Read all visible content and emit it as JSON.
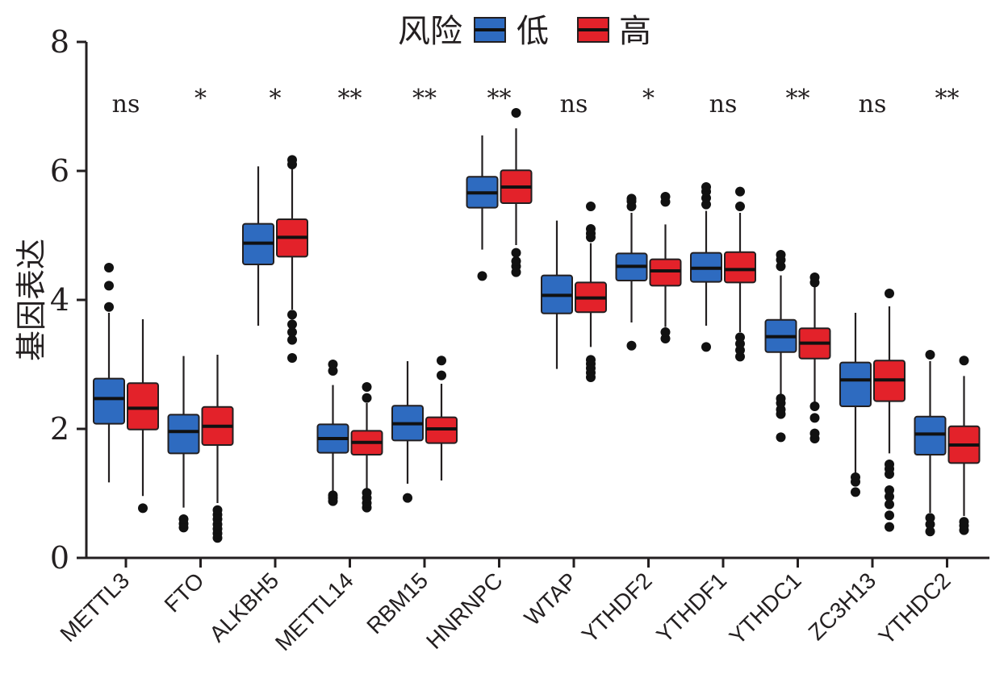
{
  "chart_data": {
    "type": "boxplot",
    "title": "",
    "xlabel": "",
    "ylabel": "基因表达",
    "ylim": [
      0,
      8
    ],
    "yticks": [
      0,
      2,
      4,
      6,
      8
    ],
    "legend": {
      "title": "风险",
      "position": "top-center",
      "entries": [
        {
          "label": "低",
          "color": "#2e6bc0"
        },
        {
          "label": "高",
          "color": "#e3222a"
        }
      ]
    },
    "categories": [
      "METTL3",
      "FTO",
      "ALKBH5",
      "METTL14",
      "RBM15",
      "HNRNPC",
      "WTAP",
      "YTHDF2",
      "YTHDF1",
      "YTHDC1",
      "ZC3H13",
      "YTHDC2"
    ],
    "significance": [
      "ns",
      "*",
      "*",
      "**",
      "**",
      "**",
      "ns",
      "*",
      "ns",
      "**",
      "ns",
      "**"
    ],
    "series": [
      {
        "name": "低",
        "color": "#2e6bc0",
        "boxes": [
          {
            "whisker_low": 1.17,
            "q1": 2.08,
            "median": 2.47,
            "q3": 2.78,
            "whisker_high": 3.8,
            "outliers": [
              3.89,
              4.22,
              4.5
            ]
          },
          {
            "whisker_low": 0.78,
            "q1": 1.62,
            "median": 1.96,
            "q3": 2.22,
            "whisker_high": 3.13,
            "outliers": [
              0.47,
              0.53,
              0.6
            ]
          },
          {
            "whisker_low": 3.6,
            "q1": 4.55,
            "median": 4.88,
            "q3": 5.18,
            "whisker_high": 6.07,
            "outliers": []
          },
          {
            "whisker_low": 1.02,
            "q1": 1.63,
            "median": 1.85,
            "q3": 2.07,
            "whisker_high": 2.68,
            "outliers": [
              0.88,
              0.93,
              0.97,
              2.9,
              3.0
            ]
          },
          {
            "whisker_low": 1.15,
            "q1": 1.82,
            "median": 2.08,
            "q3": 2.36,
            "whisker_high": 3.05,
            "outliers": [
              0.93
            ]
          },
          {
            "whisker_low": 4.78,
            "q1": 5.43,
            "median": 5.66,
            "q3": 5.91,
            "whisker_high": 6.55,
            "outliers": [
              4.37
            ]
          },
          {
            "whisker_low": 2.93,
            "q1": 3.79,
            "median": 4.07,
            "q3": 4.38,
            "whisker_high": 5.23,
            "outliers": []
          },
          {
            "whisker_low": 3.65,
            "q1": 4.3,
            "median": 4.52,
            "q3": 4.72,
            "whisker_high": 5.35,
            "outliers": [
              3.29,
              5.45,
              5.53,
              5.57
            ]
          },
          {
            "whisker_low": 3.6,
            "q1": 4.28,
            "median": 4.49,
            "q3": 4.73,
            "whisker_high": 5.38,
            "outliers": [
              3.27,
              5.48,
              5.58,
              5.68,
              5.75
            ]
          },
          {
            "whisker_low": 2.5,
            "q1": 3.19,
            "median": 3.43,
            "q3": 3.69,
            "whisker_high": 4.38,
            "outliers": [
              1.87,
              2.23,
              2.3,
              2.4,
              2.47,
              4.52,
              4.62,
              4.7
            ]
          },
          {
            "whisker_low": 1.28,
            "q1": 2.35,
            "median": 2.76,
            "q3": 3.03,
            "whisker_high": 3.8,
            "outliers": [
              1.02,
              1.18,
              1.25
            ]
          },
          {
            "whisker_low": 0.7,
            "q1": 1.6,
            "median": 1.92,
            "q3": 2.19,
            "whisker_high": 3.05,
            "outliers": [
              0.41,
              0.52,
              0.62,
              3.15
            ]
          }
        ]
      },
      {
        "name": "高",
        "color": "#e3222a",
        "boxes": [
          {
            "whisker_low": 0.96,
            "q1": 1.99,
            "median": 2.32,
            "q3": 2.71,
            "whisker_high": 3.7,
            "outliers": [
              0.77
            ]
          },
          {
            "whisker_low": 0.85,
            "q1": 1.75,
            "median": 2.04,
            "q3": 2.34,
            "whisker_high": 3.15,
            "outliers": [
              0.31,
              0.38,
              0.45,
              0.52,
              0.6,
              0.67,
              0.74
            ]
          },
          {
            "whisker_low": 3.85,
            "q1": 4.67,
            "median": 4.97,
            "q3": 5.25,
            "whisker_high": 6.05,
            "outliers": [
              3.1,
              3.38,
              3.5,
              3.62,
              3.77,
              6.1,
              6.17
            ]
          },
          {
            "whisker_low": 1.08,
            "q1": 1.6,
            "median": 1.79,
            "q3": 1.97,
            "whisker_high": 2.4,
            "outliers": [
              0.78,
              0.85,
              0.93,
              1.01,
              2.48,
              2.65
            ]
          },
          {
            "whisker_low": 1.2,
            "q1": 1.78,
            "median": 2.0,
            "q3": 2.18,
            "whisker_high": 2.7,
            "outliers": [
              2.83,
              3.06
            ]
          },
          {
            "whisker_low": 4.85,
            "q1": 5.5,
            "median": 5.75,
            "q3": 6.01,
            "whisker_high": 6.66,
            "outliers": [
              4.43,
              4.52,
              4.6,
              4.73,
              6.9
            ]
          },
          {
            "whisker_low": 3.27,
            "q1": 3.81,
            "median": 4.03,
            "q3": 4.27,
            "whisker_high": 4.88,
            "outliers": [
              2.8,
              2.87,
              2.94,
              3.01,
              3.07,
              4.97,
              5.03,
              5.1,
              5.45
            ]
          },
          {
            "whisker_low": 3.58,
            "q1": 4.22,
            "median": 4.45,
            "q3": 4.63,
            "whisker_high": 5.17,
            "outliers": [
              3.4,
              3.5,
              5.52,
              5.6
            ]
          },
          {
            "whisker_low": 3.5,
            "q1": 4.27,
            "median": 4.47,
            "q3": 4.74,
            "whisker_high": 5.35,
            "outliers": [
              3.12,
              3.22,
              3.32,
              3.42,
              5.45,
              5.68
            ]
          },
          {
            "whisker_low": 2.4,
            "q1": 3.09,
            "median": 3.33,
            "q3": 3.56,
            "whisker_high": 4.22,
            "outliers": [
              1.85,
              1.93,
              2.17,
              2.35,
              4.27,
              4.35
            ]
          },
          {
            "whisker_low": 1.62,
            "q1": 2.43,
            "median": 2.76,
            "q3": 3.06,
            "whisker_high": 3.9,
            "outliers": [
              0.48,
              0.66,
              0.83,
              0.95,
              1.05,
              1.3,
              1.38,
              1.45,
              4.1
            ]
          },
          {
            "whisker_low": 0.65,
            "q1": 1.47,
            "median": 1.75,
            "q3": 2.04,
            "whisker_high": 2.82,
            "outliers": [
              0.43,
              0.5,
              0.56,
              3.06
            ]
          }
        ]
      }
    ]
  }
}
